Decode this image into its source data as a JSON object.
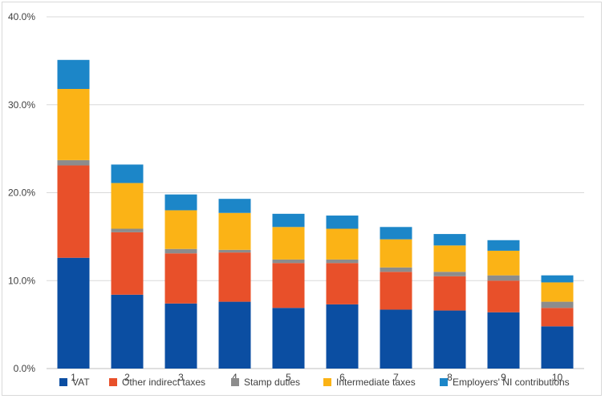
{
  "chart_data": {
    "type": "bar",
    "stacked": true,
    "title": "",
    "xlabel": "",
    "ylabel": "",
    "categories": [
      "1",
      "2",
      "3",
      "4",
      "5",
      "6",
      "7",
      "8",
      "9",
      "10"
    ],
    "ylim": [
      0,
      40
    ],
    "yticks": [
      "0.0%",
      "10.0%",
      "20.0%",
      "30.0%",
      "40.0%"
    ],
    "ytick_values": [
      0,
      10,
      20,
      30,
      40
    ],
    "grid": true,
    "legend_position": "bottom",
    "series": [
      {
        "name": "VAT",
        "color": "#0b4ea2",
        "values": [
          12.6,
          8.4,
          7.4,
          7.6,
          6.9,
          7.3,
          6.7,
          6.6,
          6.4,
          4.8
        ]
      },
      {
        "name": "Other indirect taxes",
        "color": "#e8502a",
        "values": [
          10.5,
          7.1,
          5.7,
          5.6,
          5.1,
          4.7,
          4.3,
          3.9,
          3.6,
          2.1
        ]
      },
      {
        "name": "Stamp duties",
        "color": "#8c8c8c",
        "values": [
          0.6,
          0.4,
          0.5,
          0.3,
          0.4,
          0.4,
          0.5,
          0.5,
          0.6,
          0.7
        ]
      },
      {
        "name": "Intermediate taxes",
        "color": "#fbb316",
        "values": [
          8.1,
          5.2,
          4.4,
          4.2,
          3.7,
          3.5,
          3.2,
          3.0,
          2.8,
          2.2
        ]
      },
      {
        "name": "Employers' NI contributions",
        "color": "#1c86c8",
        "values": [
          3.3,
          2.1,
          1.8,
          1.6,
          1.5,
          1.5,
          1.4,
          1.3,
          1.2,
          0.8
        ]
      }
    ]
  }
}
